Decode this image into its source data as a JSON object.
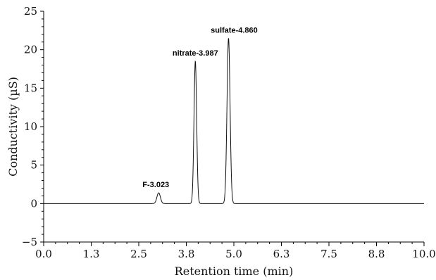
{
  "chart_data": {
    "type": "line",
    "title": "",
    "xlabel": "Retention time (min)",
    "ylabel": "Conductivity (µS)",
    "xlim": [
      0.0,
      10.0
    ],
    "ylim": [
      -5,
      25
    ],
    "x_ticks": [
      "0.0",
      "1.3",
      "2.5",
      "3.8",
      "5.0",
      "6.3",
      "7.5",
      "8.8",
      "10.0"
    ],
    "y_ticks": [
      "−5",
      "0",
      "5",
      "10",
      "15",
      "20",
      "25"
    ],
    "grid": false,
    "baseline": 0,
    "series": [
      {
        "x": [
          0.0,
          2.8,
          2.95,
          3.023,
          3.1,
          3.25,
          3.7,
          3.85,
          3.987,
          4.1,
          4.3,
          4.55,
          4.72,
          4.86,
          5.0,
          5.2,
          10.0
        ],
        "y": [
          0,
          0,
          0.4,
          1.4,
          0.5,
          0,
          0,
          3.0,
          18.5,
          2.0,
          0.1,
          0,
          4.0,
          21.5,
          3.0,
          0,
          0
        ]
      }
    ],
    "peaks": [
      {
        "label": "F-3.023",
        "x": 3.023,
        "y": 1.4
      },
      {
        "label": "nitrate-3.987",
        "x": 3.987,
        "y": 18.5
      },
      {
        "label": "sulfate-4.860",
        "x": 4.86,
        "y": 21.5
      }
    ]
  }
}
